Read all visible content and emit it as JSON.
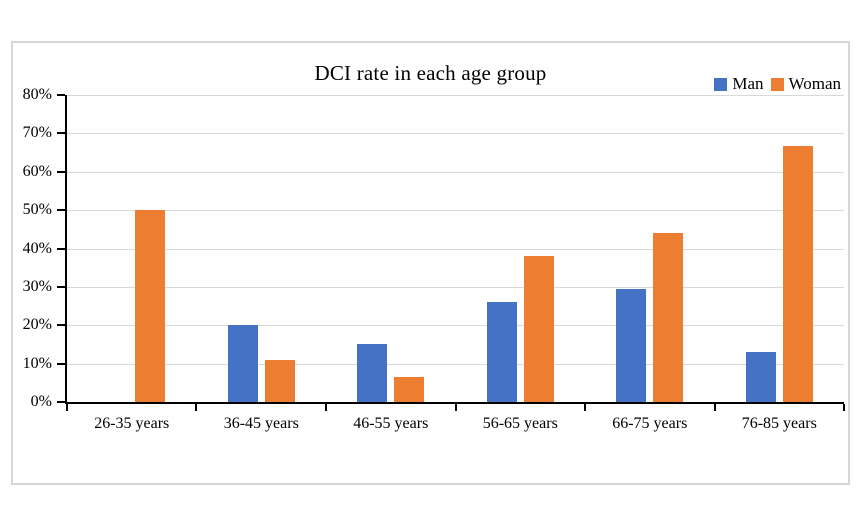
{
  "chart": {
    "title": "DCI rate in each age group",
    "legend_items": [
      {
        "label": "Man",
        "color": "#4472C4"
      },
      {
        "label": "Woman",
        "color": "#ED7D31"
      }
    ]
  },
  "chart_data": {
    "type": "bar",
    "title": "DCI rate in each age group",
    "categories": [
      "26-35 years",
      "36-45 years",
      "46-55 years",
      "56-65 years",
      "66-75 years",
      "76-85 years"
    ],
    "series": [
      {
        "name": "Man",
        "color": "#4472C4",
        "values": [
          0,
          20,
          15,
          26,
          29.5,
          13
        ]
      },
      {
        "name": "Woman",
        "color": "#ED7D31",
        "values": [
          50,
          11,
          6.5,
          38,
          44,
          66.7
        ]
      }
    ],
    "xlabel": "",
    "ylabel": "",
    "ylim": [
      0,
      80
    ],
    "ytick_step": 10,
    "ytick_labels": [
      "0%",
      "10%",
      "20%",
      "30%",
      "40%",
      "50%",
      "60%",
      "70%",
      "80%"
    ],
    "grid": true,
    "gridline_color": "#d9d9d9",
    "legend_position": "top-right"
  }
}
